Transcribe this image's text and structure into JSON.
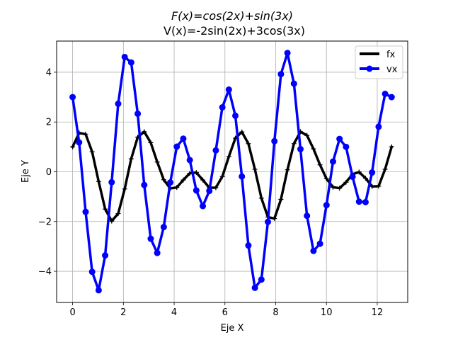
{
  "chart_data": {
    "type": "line",
    "title_math": "F(x)=cos(2x)+sin(3x)",
    "subtitle": "V(x)=-2sin(2x)+3cos(3x)",
    "xlabel": "Eje X",
    "ylabel": "Eje Y",
    "xlim": [
      -0.63,
      13.2
    ],
    "ylim": [
      -5.25,
      5.25
    ],
    "xticks": [
      0,
      2,
      4,
      6,
      8,
      10,
      12
    ],
    "yticks": [
      -4,
      -2,
      0,
      2,
      4
    ],
    "grid": true,
    "legend_position": "top-right",
    "x_range": [
      0,
      12.566
    ],
    "n_points": 50,
    "series": [
      {
        "name": "fx",
        "formula": "cos(2x)+sin(3x)",
        "color": "#000000",
        "marker": "+",
        "values": [
          1.0,
          1.56,
          1.51,
          0.8,
          -0.39,
          -1.5,
          -1.98,
          -1.68,
          -0.69,
          0.52,
          1.39,
          1.61,
          1.17,
          0.39,
          -0.32,
          -0.67,
          -0.63,
          -0.33,
          -0.06,
          -0.03,
          -0.33,
          -0.64,
          -0.64,
          -0.19,
          0.61,
          1.35,
          1.6,
          1.13,
          0.1,
          -1.06,
          -1.82,
          -1.88,
          -1.11,
          0.08,
          1.13,
          1.61,
          1.46,
          0.92,
          0.28,
          -0.28,
          -0.62,
          -0.66,
          -0.42,
          -0.1,
          -0.01,
          -0.26,
          -0.59,
          -0.58,
          0.1,
          1.0
        ]
      },
      {
        "name": "vx",
        "formula": "-2sin(2x)+3cos(3x)",
        "color": "#0000ff",
        "marker": "o",
        "values": [
          3.0,
          1.18,
          -1.61,
          -4.02,
          -4.76,
          -3.36,
          -0.42,
          2.73,
          4.61,
          4.39,
          2.33,
          -0.53,
          -2.69,
          -3.26,
          -2.22,
          -0.43,
          1.01,
          1.33,
          0.47,
          -0.75,
          -1.38,
          -0.77,
          0.86,
          2.59,
          3.3,
          2.25,
          -0.19,
          -2.96,
          -4.66,
          -4.33,
          -2.01,
          1.23,
          3.92,
          4.77,
          3.54,
          0.91,
          -1.77,
          -3.18,
          -2.89,
          -1.34,
          0.41,
          1.32,
          1.0,
          -0.2,
          -1.2,
          -1.22,
          -0.03,
          1.81,
          3.13,
          3.0
        ]
      }
    ]
  }
}
